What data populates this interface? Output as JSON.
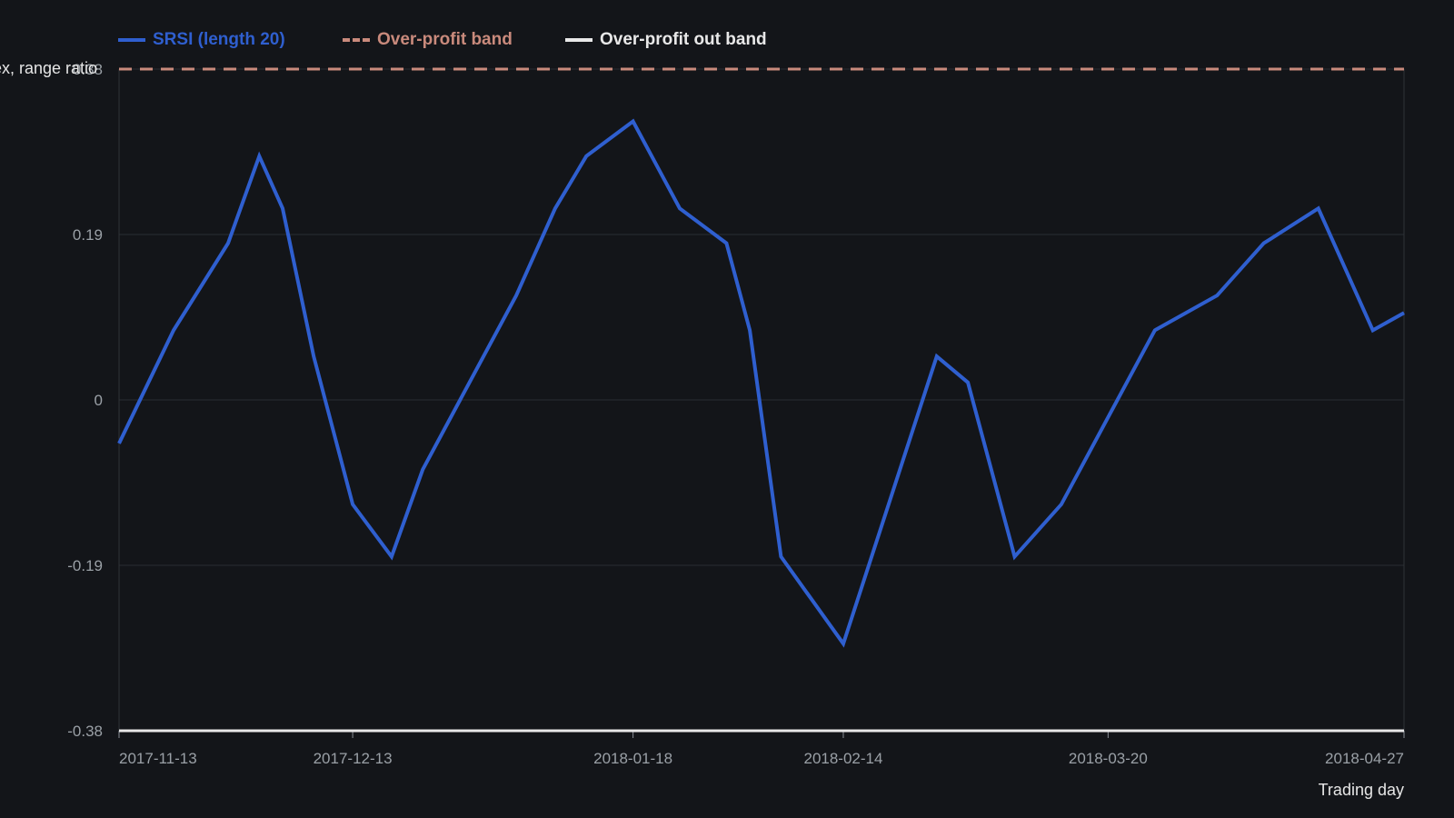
{
  "chart_data": {
    "type": "line",
    "xlabel": "Trading day",
    "ylabel": "ex, range ratio",
    "ylim": [
      -0.38,
      0.38
    ],
    "y_ticks": [
      "0.38",
      "0.19",
      "0",
      "-0.19",
      "-0.38"
    ],
    "x_ticks": [
      "2017-11-13",
      "2017-12-13",
      "2018-01-18",
      "2018-02-14",
      "2018-03-20",
      "2018-04-27"
    ],
    "grid": true,
    "legend_position": "top-left",
    "series": [
      {
        "name": "SRSI (length 20)",
        "color": "#2f5fcf",
        "style": "solid",
        "points": [
          [
            "2017-11-13",
            -0.05
          ],
          [
            "2017-11-20",
            0.08
          ],
          [
            "2017-11-27",
            0.18
          ],
          [
            "2017-12-01",
            0.28
          ],
          [
            "2017-12-04",
            0.22
          ],
          [
            "2017-12-08",
            0.05
          ],
          [
            "2017-12-13",
            -0.12
          ],
          [
            "2017-12-18",
            -0.18
          ],
          [
            "2017-12-22",
            -0.08
          ],
          [
            "2017-12-28",
            0.02
          ],
          [
            "2018-01-03",
            0.12
          ],
          [
            "2018-01-08",
            0.22
          ],
          [
            "2018-01-12",
            0.28
          ],
          [
            "2018-01-18",
            0.32
          ],
          [
            "2018-01-24",
            0.22
          ],
          [
            "2018-01-30",
            0.18
          ],
          [
            "2018-02-02",
            0.08
          ],
          [
            "2018-02-06",
            -0.18
          ],
          [
            "2018-02-14",
            -0.28
          ],
          [
            "2018-02-26",
            0.05
          ],
          [
            "2018-03-02",
            0.02
          ],
          [
            "2018-03-08",
            -0.18
          ],
          [
            "2018-03-14",
            -0.12
          ],
          [
            "2018-03-26",
            0.08
          ],
          [
            "2018-04-03",
            0.12
          ],
          [
            "2018-04-09",
            0.18
          ],
          [
            "2018-04-16",
            0.22
          ],
          [
            "2018-04-23",
            0.08
          ],
          [
            "2018-04-27",
            0.1
          ]
        ]
      },
      {
        "name": "Over-profit band",
        "color": "#c98a7c",
        "style": "dashed",
        "value": 0.38
      },
      {
        "name": "Over-profit out band",
        "color": "#e8e8e8",
        "style": "solid",
        "value": -0.38
      }
    ]
  }
}
